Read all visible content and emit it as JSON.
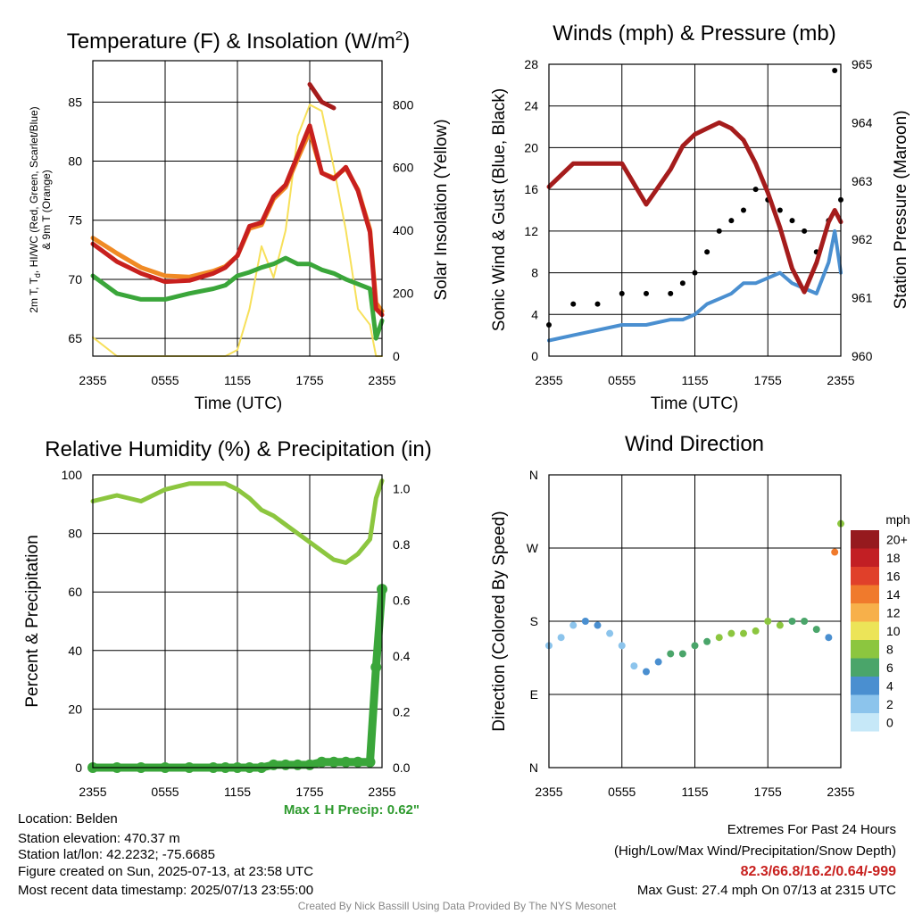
{
  "colors": {
    "temp_red": "#c8201e",
    "dewpoint_green": "#3aa63a",
    "heatindex_scarlet": "#d93a1a",
    "temp9m_orange": "#f08a24",
    "insolation_yellow": "#f7e05a",
    "wind_blue": "#4a8fd0",
    "gust_black": "#000000",
    "pressure_maroon": "#a51c1c",
    "rh_lightgreen": "#8cc63f",
    "precip_green": "#3aa63a",
    "extremes_red": "#c8201e",
    "max_precip_green": "#2e9a2e",
    "credit_gray": "#888888"
  },
  "x_ticks": [
    "2355",
    "0555",
    "1155",
    "1755",
    "2355"
  ],
  "panels": {
    "temp": {
      "title": "Temperature (F) & Insolation (W/m",
      "title_sup": "2",
      "title_end": ")",
      "ylabel_left_line1": "2m T, T",
      "ylabel_left_sub": "d",
      "ylabel_left_line1b": ", HI/WC (Red, Green, Scarlet/Blue)",
      "ylabel_left_line2": "& 9m T (Orange)",
      "ylabel_right": "Solar Insolation (Yellow)",
      "xlabel": "Time (UTC)",
      "yticks_left": [
        "65",
        "70",
        "75",
        "80",
        "85"
      ],
      "yticks_right": [
        "0",
        "200",
        "400",
        "600",
        "800"
      ]
    },
    "wind": {
      "title": "Winds (mph) & Pressure (mb)",
      "ylabel_left": "Sonic Wind & Gust (Blue, Black)",
      "ylabel_right": "Station Pressure (Maroon)",
      "xlabel": "Time (UTC)",
      "yticks_left": [
        "0",
        "4",
        "8",
        "12",
        "16",
        "20",
        "24",
        "28"
      ],
      "yticks_right": [
        "960",
        "961",
        "962",
        "963",
        "964",
        "965"
      ]
    },
    "rh": {
      "title": "Relative Humidity (%) & Precipitation (in)",
      "ylabel_left": "Percent & Precipitation",
      "yticks_left": [
        "0",
        "20",
        "40",
        "60",
        "80",
        "100"
      ],
      "yticks_right": [
        "0.0",
        "0.2",
        "0.4",
        "0.6",
        "0.8",
        "1.0"
      ],
      "max_precip": "Max 1 H Precip: 0.62\""
    },
    "dir": {
      "title": "Wind Direction",
      "ylabel_left": "Direction (Colored By Speed)",
      "yticks_left": [
        "N",
        "E",
        "S",
        "W",
        "N"
      ],
      "colorbar_title": "mph",
      "colorbar_labels": [
        "0",
        "2",
        "4",
        "6",
        "8",
        "10",
        "12",
        "14",
        "16",
        "18",
        "20+"
      ],
      "colorbar_colors": [
        "#c6e8f8",
        "#8cc4ec",
        "#4a8fd0",
        "#4aa56a",
        "#8cc63f",
        "#ece458",
        "#f7b04a",
        "#f07a2c",
        "#e0402a",
        "#c21f24",
        "#961a1e"
      ]
    }
  },
  "info": {
    "location": "Location: Belden",
    "elevation": "Station elevation: 470.37 m",
    "latlon": "Station lat/lon: 42.2232; -75.6685",
    "created": "Figure created on Sun, 2025-07-13, at 23:58 UTC",
    "recent": "Most recent data timestamp: 2025/07/13 23:55:00"
  },
  "extremes": {
    "title": "Extremes For Past 24 Hours",
    "subtitle": "(High/Low/Max Wind/Precipitation/Snow Depth)",
    "values": "82.3/66.8/16.2/0.64/-999",
    "gust": "Max Gust: 27.4 mph On 07/13 at 2315 UTC"
  },
  "credit": "Created By Nick Bassill Using Data Provided By The NYS Mesonet",
  "chart_data": [
    {
      "type": "line",
      "title": "Temperature (F) & Insolation (W/m2)",
      "xlabel": "Time (UTC)",
      "ylabel": "2m T, Td, HI/WC (Red, Green, Scarlet/Blue) & 9m T (Orange)",
      "ylabel_right": "Solar Insolation (Yellow)",
      "x": [
        0,
        2,
        4,
        6,
        8,
        10,
        11,
        12,
        13,
        14,
        15,
        16,
        17,
        18,
        19,
        20,
        21,
        22,
        23,
        23.5,
        24
      ],
      "x_tick_labels": [
        "2355",
        "0555",
        "1155",
        "1755",
        "2355"
      ],
      "ylim": [
        63.5,
        88.5
      ],
      "ylim_right": [
        0,
        940
      ],
      "series": [
        {
          "name": "2m T",
          "axis": "left",
          "values": [
            73.0,
            71.5,
            70.5,
            69.8,
            69.9,
            70.5,
            71.0,
            72.0,
            74.5,
            74.8,
            77.0,
            78.0,
            80.5,
            83.0,
            79.0,
            78.5,
            79.5,
            77.5,
            74.0,
            67.5,
            67.0
          ]
        },
        {
          "name": "9m T",
          "axis": "left",
          "values": [
            73.5,
            72.2,
            71.0,
            70.3,
            70.2,
            70.7,
            71.1,
            72.0,
            74.3,
            74.6,
            76.8,
            77.8,
            80.2,
            82.5,
            79.0,
            78.6,
            79.4,
            77.6,
            74.2,
            68.0,
            67.3
          ]
        },
        {
          "name": "HI/WC",
          "axis": "left",
          "values": [
            null,
            null,
            null,
            null,
            null,
            null,
            null,
            null,
            null,
            null,
            null,
            null,
            null,
            86.5,
            85.0,
            84.5,
            null,
            null,
            null,
            null,
            null
          ]
        },
        {
          "name": "Td",
          "axis": "left",
          "values": [
            70.3,
            68.8,
            68.3,
            68.3,
            68.8,
            69.2,
            69.5,
            70.3,
            70.6,
            71.0,
            71.3,
            71.8,
            71.3,
            71.3,
            70.8,
            70.5,
            70.0,
            69.6,
            69.2,
            65.0,
            66.5
          ]
        },
        {
          "name": "Solar Insolation",
          "axis": "right",
          "values": [
            60,
            0,
            0,
            0,
            0,
            0,
            0,
            20,
            150,
            350,
            250,
            400,
            700,
            800,
            780,
            600,
            400,
            150,
            100,
            0,
            0
          ]
        }
      ]
    },
    {
      "type": "line",
      "title": "Winds (mph) & Pressure (mb)",
      "xlabel": "Time (UTC)",
      "ylabel": "Sonic Wind & Gust (Blue, Black)",
      "ylabel_right": "Station Pressure (Maroon)",
      "x": [
        0,
        2,
        4,
        6,
        8,
        10,
        11,
        12,
        13,
        14,
        15,
        16,
        17,
        18,
        19,
        20,
        21,
        22,
        23,
        23.5,
        24
      ],
      "x_tick_labels": [
        "2355",
        "0555",
        "1155",
        "1755",
        "2355"
      ],
      "ylim": [
        0,
        28
      ],
      "ylim_right": [
        960,
        965
      ],
      "series": [
        {
          "name": "Sonic Wind",
          "axis": "left",
          "values": [
            1.5,
            2.0,
            2.5,
            3.0,
            3.0,
            3.5,
            3.5,
            4.0,
            5.0,
            5.5,
            6.0,
            7.0,
            7.0,
            7.5,
            8.0,
            7.0,
            6.5,
            6.0,
            9.0,
            12.0,
            8.0
          ]
        },
        {
          "name": "Gust",
          "axis": "left",
          "values": [
            3.0,
            5.0,
            5.0,
            6.0,
            6.0,
            6.0,
            7.0,
            8.0,
            10.0,
            12.0,
            13.0,
            14.0,
            16.0,
            15.0,
            14.0,
            13.0,
            12.0,
            10.0,
            13.0,
            27.4,
            15.0
          ]
        },
        {
          "name": "Station Pressure",
          "axis": "right",
          "values": [
            962.9,
            963.3,
            963.3,
            963.3,
            962.6,
            963.2,
            963.6,
            963.8,
            963.9,
            964.0,
            963.9,
            963.7,
            963.3,
            962.8,
            962.2,
            961.5,
            961.1,
            961.6,
            962.3,
            962.5,
            962.3
          ]
        }
      ]
    },
    {
      "type": "line",
      "title": "Relative Humidity (%) & Precipitation (in)",
      "ylabel": "Percent & Precipitation",
      "x": [
        0,
        2,
        4,
        6,
        8,
        10,
        11,
        12,
        13,
        14,
        15,
        16,
        17,
        18,
        19,
        20,
        21,
        22,
        23,
        23.5,
        24
      ],
      "x_tick_labels": [
        "2355",
        "0555",
        "1155",
        "1755",
        "2355"
      ],
      "ylim": [
        0,
        100
      ],
      "ylim_right": [
        0,
        1.05
      ],
      "series": [
        {
          "name": "Relative Humidity",
          "axis": "left",
          "values": [
            91,
            93,
            91,
            95,
            97,
            97,
            97,
            95,
            92,
            88,
            86,
            83,
            80,
            77,
            74,
            71,
            70,
            73,
            78,
            92,
            98
          ]
        },
        {
          "name": "Precipitation",
          "axis": "right",
          "values": [
            0,
            0,
            0,
            0,
            0,
            0,
            0,
            0,
            0,
            0,
            0.01,
            0.01,
            0.01,
            0.01,
            0.02,
            0.02,
            0.02,
            0.02,
            0.02,
            0.36,
            0.64
          ]
        }
      ],
      "annotation": "Max 1 H Precip: 0.62\""
    },
    {
      "type": "scatter",
      "title": "Wind Direction",
      "ylabel": "Direction (Colored By Speed)",
      "y_tick_labels": [
        "N",
        "E",
        "S",
        "W",
        "N"
      ],
      "ylim": [
        0,
        360
      ],
      "x_tick_labels": [
        "2355",
        "0555",
        "1155",
        "1755",
        "2355"
      ],
      "colorbar_label": "mph",
      "colorbar_ticks": [
        "0",
        "2",
        "4",
        "6",
        "8",
        "10",
        "12",
        "14",
        "16",
        "18",
        "20+"
      ],
      "series": [
        {
          "name": "direction",
          "x": [
            0,
            1,
            2,
            3,
            4,
            5,
            6,
            7,
            8,
            9,
            10,
            11,
            12,
            13,
            14,
            15,
            16,
            17,
            18,
            19,
            20,
            21,
            22,
            23,
            23.5,
            24
          ],
          "y": [
            150,
            160,
            175,
            180,
            175,
            165,
            150,
            125,
            118,
            130,
            140,
            140,
            150,
            155,
            160,
            165,
            165,
            168,
            180,
            175,
            180,
            180,
            170,
            160,
            265,
            300
          ],
          "speed": [
            2,
            2,
            2,
            3,
            3,
            2,
            2,
            2,
            3,
            4,
            5,
            5,
            6,
            6,
            7,
            8,
            7,
            7,
            8,
            7,
            6,
            5,
            5,
            4,
            13,
            7
          ]
        }
      ]
    }
  ]
}
